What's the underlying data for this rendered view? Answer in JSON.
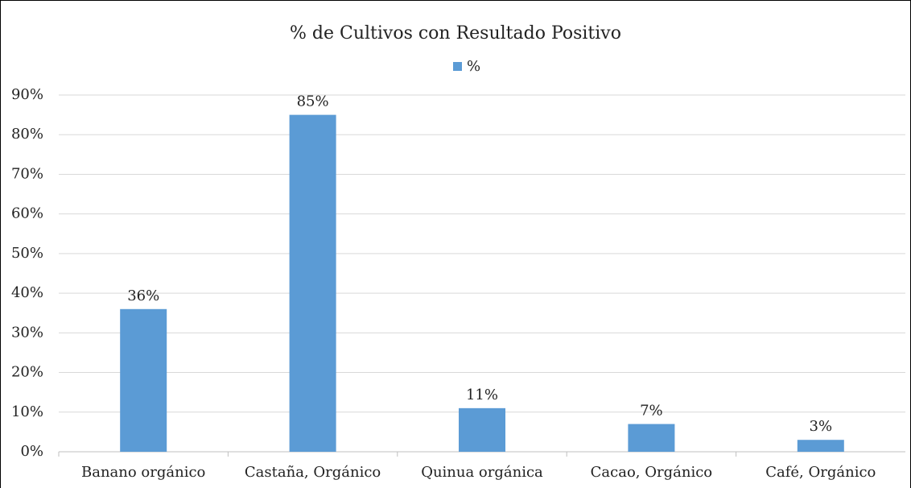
{
  "chart_data": {
    "type": "bar",
    "title": "% de Cultivos con Resultado Positivo",
    "categories": [
      "Banano orgánico",
      "Castaña, Orgánico",
      "Quinua orgánica",
      "Cacao, Orgánico",
      "Café, Orgánico"
    ],
    "series": [
      {
        "name": "%",
        "color": "#5b9bd5",
        "values": [
          36,
          85,
          11,
          7,
          3
        ],
        "value_labels": [
          "36%",
          "85%",
          "11%",
          "7%",
          "3%"
        ]
      }
    ],
    "ylim": [
      0,
      90
    ],
    "yticks": [
      {
        "value": 0,
        "label": "0%"
      },
      {
        "value": 10,
        "label": "10%"
      },
      {
        "value": 20,
        "label": "20%"
      },
      {
        "value": 30,
        "label": "30%"
      },
      {
        "value": 40,
        "label": "40%"
      },
      {
        "value": 50,
        "label": "50%"
      },
      {
        "value": 60,
        "label": "60%"
      },
      {
        "value": 70,
        "label": "70%"
      },
      {
        "value": 80,
        "label": "80%"
      },
      {
        "value": 90,
        "label": "90%"
      }
    ],
    "grid": true,
    "legend": "top"
  }
}
